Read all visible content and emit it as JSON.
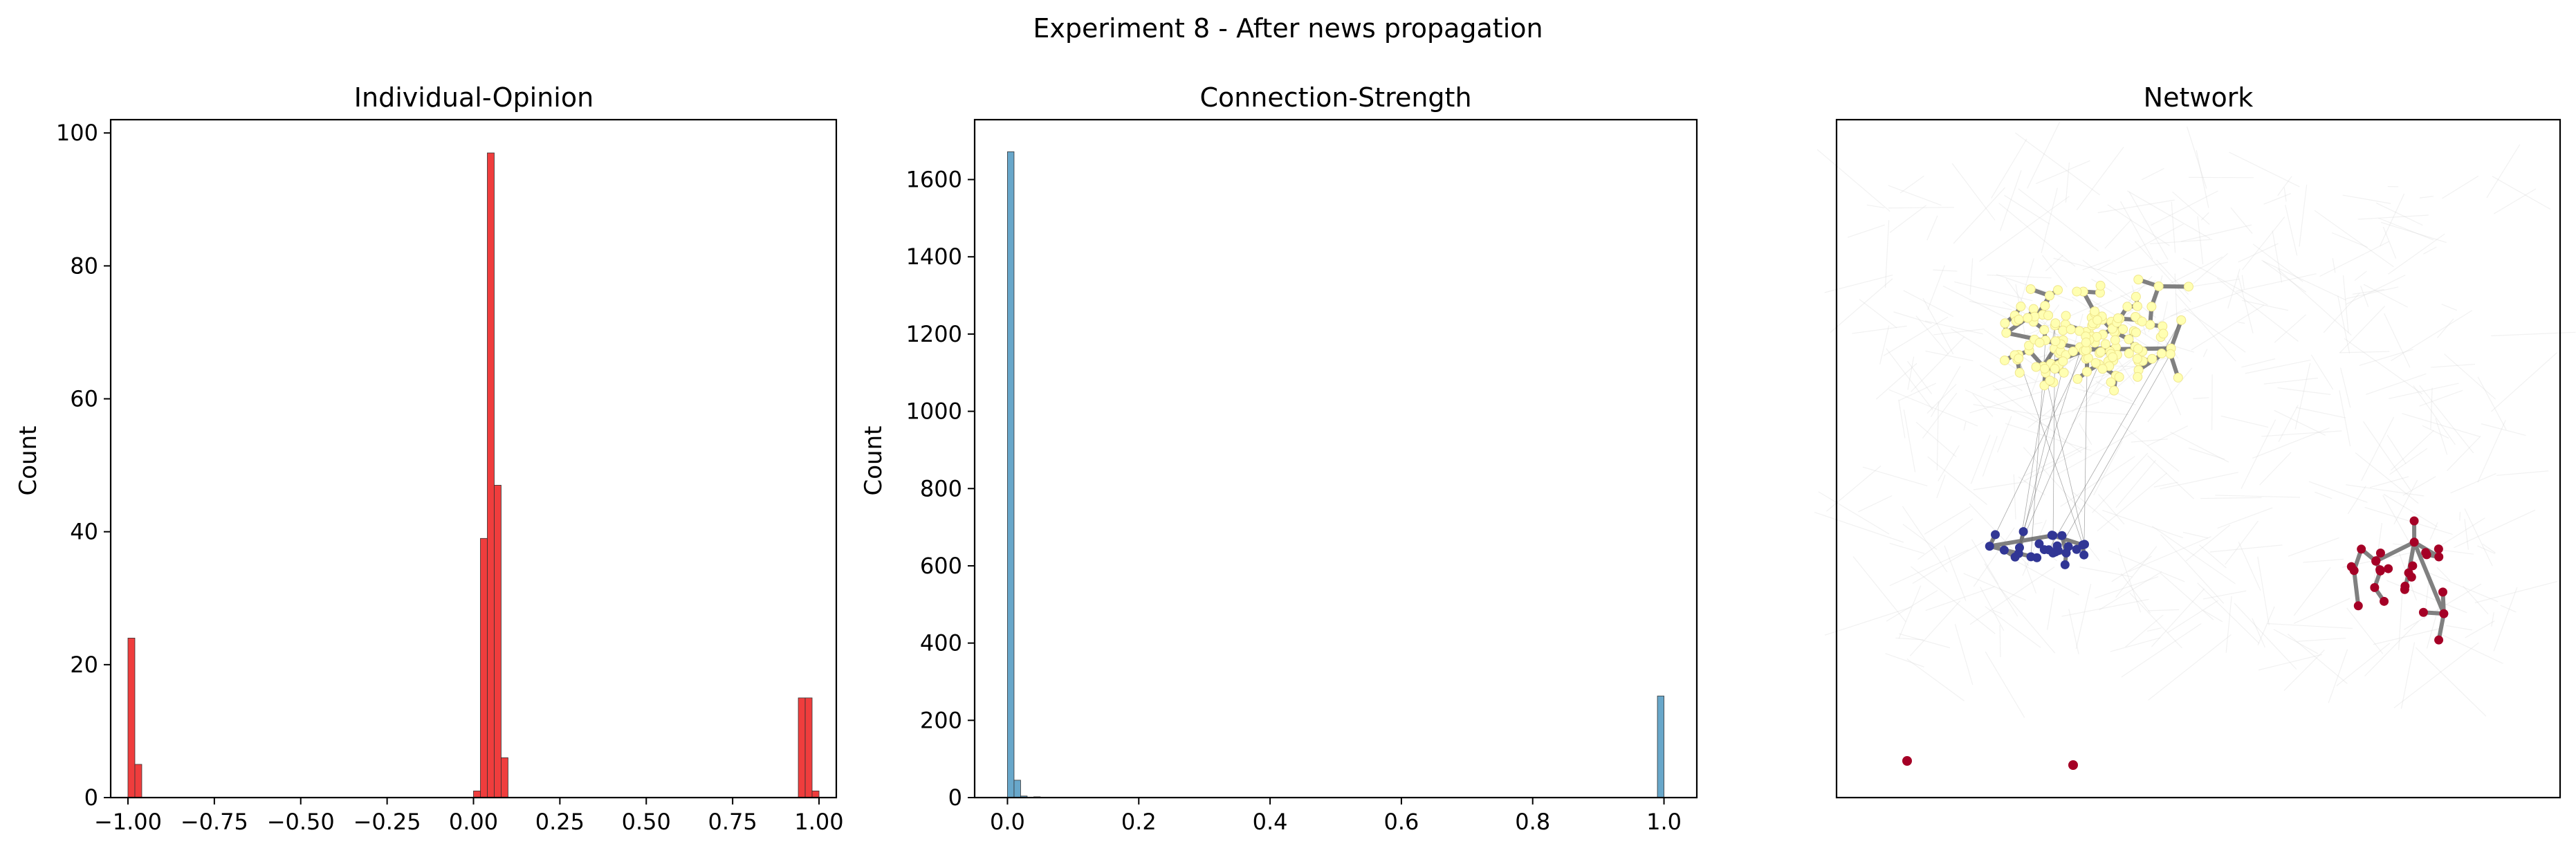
{
  "figure": {
    "suptitle": "Experiment 8 - After news propagation"
  },
  "colors": {
    "opinion_bar": "#ee2c2c",
    "strength_bar": "#5b9fc6",
    "edge_strong": "#808080",
    "node_yellow": "#ffffb2",
    "node_blue": "#313695",
    "node_red": "#a50026"
  },
  "chart_data": [
    {
      "type": "bar",
      "title": "Individual-Opinion",
      "xlabel": "",
      "ylabel": "Count",
      "xlim": [
        -1.05,
        1.05
      ],
      "ylim": [
        0,
        102
      ],
      "xticks": [
        -1.0,
        -0.75,
        -0.5,
        -0.25,
        0.0,
        0.25,
        0.5,
        0.75,
        1.0
      ],
      "xtick_labels": [
        "−1.00",
        "−0.75",
        "−0.50",
        "−0.25",
        "0.00",
        "0.25",
        "0.50",
        "0.75",
        "1.00"
      ],
      "yticks": [
        0,
        20,
        40,
        60,
        80,
        100
      ],
      "ytick_labels": [
        "0",
        "20",
        "40",
        "60",
        "80",
        "100"
      ],
      "grid": false,
      "bin_width": 0.02,
      "bins": [
        {
          "x": -0.99,
          "count": 24
        },
        {
          "x": -0.97,
          "count": 5
        },
        {
          "x": 0.01,
          "count": 1
        },
        {
          "x": 0.03,
          "count": 39
        },
        {
          "x": 0.05,
          "count": 97
        },
        {
          "x": 0.07,
          "count": 47
        },
        {
          "x": 0.09,
          "count": 6
        },
        {
          "x": 0.95,
          "count": 15
        },
        {
          "x": 0.97,
          "count": 15
        },
        {
          "x": 0.99,
          "count": 1
        }
      ]
    },
    {
      "type": "bar",
      "title": "Connection-Strength",
      "xlabel": "",
      "ylabel": "Count",
      "xlim": [
        -0.05,
        1.05
      ],
      "ylim": [
        0,
        1755
      ],
      "xticks": [
        0.0,
        0.2,
        0.4,
        0.6,
        0.8,
        1.0
      ],
      "xtick_labels": [
        "0.0",
        "0.2",
        "0.4",
        "0.6",
        "0.8",
        "1.0"
      ],
      "yticks": [
        0,
        200,
        400,
        600,
        800,
        1000,
        1200,
        1400,
        1600
      ],
      "ytick_labels": [
        "0",
        "200",
        "400",
        "600",
        "800",
        "1000",
        "1200",
        "1400",
        "1600"
      ],
      "grid": false,
      "bin_width": 0.01,
      "bins": [
        {
          "x": 0.005,
          "count": 1672
        },
        {
          "x": 0.015,
          "count": 45
        },
        {
          "x": 0.025,
          "count": 4
        },
        {
          "x": 0.045,
          "count": 2
        },
        {
          "x": 0.995,
          "count": 263
        }
      ]
    }
  ],
  "network": {
    "title": "Network",
    "clusters": [
      {
        "name": "yellow",
        "color": "#ffffb2",
        "count": 150
      },
      {
        "name": "blue",
        "color": "#313695",
        "count": 26
      },
      {
        "name": "red",
        "color": "#a50026",
        "count": 29
      }
    ]
  }
}
